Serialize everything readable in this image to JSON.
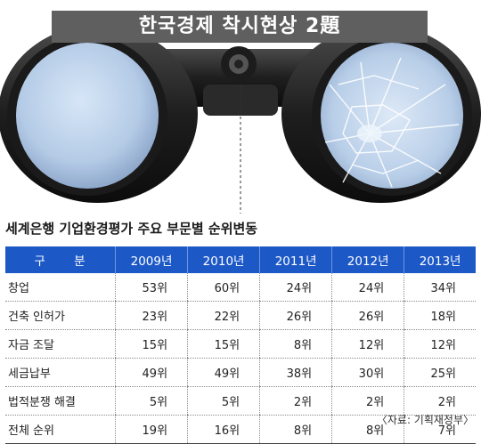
{
  "banner": {
    "title": "한국경제 착시현상 2題"
  },
  "chart_data": {
    "type": "table",
    "title": "세계은행 기업환경평가 주요 부문별 순위변동",
    "columns": [
      "구 분",
      "2009년",
      "2010년",
      "2011년",
      "2012년",
      "2013년"
    ],
    "rows": [
      {
        "label": "창업",
        "values": [
          "53위",
          "60위",
          "24위",
          "24위",
          "34위"
        ]
      },
      {
        "label": "건축 인허가",
        "values": [
          "23위",
          "22위",
          "26위",
          "26위",
          "18위"
        ]
      },
      {
        "label": "자금 조달",
        "values": [
          "15위",
          "15위",
          "8위",
          "12위",
          "12위"
        ]
      },
      {
        "label": "세금납부",
        "values": [
          "49위",
          "49위",
          "38위",
          "30위",
          "25위"
        ]
      },
      {
        "label": "법적분쟁 해결",
        "values": [
          "5위",
          "5위",
          "2위",
          "2위",
          "2위"
        ]
      },
      {
        "label": "전체 순위",
        "values": [
          "19위",
          "16위",
          "8위",
          "8위",
          "7위"
        ]
      }
    ],
    "source": "〈자료: 기획재정부〉"
  }
}
